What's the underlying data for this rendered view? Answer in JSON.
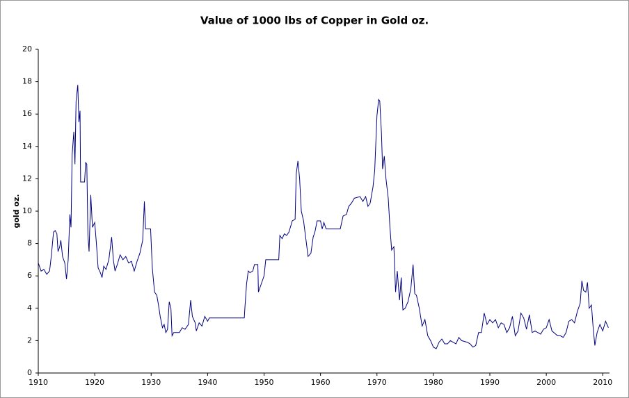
{
  "chart_data": {
    "type": "line",
    "title": "Value of 1000 lbs of Copper in Gold oz.",
    "y_label": "gold oz.",
    "xlim": [
      1910,
      2011.2
    ],
    "ylim": [
      0,
      20
    ],
    "xticks": [
      1910,
      1920,
      1930,
      1940,
      1950,
      1960,
      1970,
      1980,
      1990,
      2000,
      2010
    ],
    "yticks": [
      0,
      2,
      4,
      6,
      8,
      10,
      12,
      14,
      16,
      18,
      20
    ],
    "color": "#000080",
    "x": [
      1910,
      1910.5,
      1911,
      1911.5,
      1912,
      1912.3,
      1912.7,
      1913,
      1913.3,
      1913.5,
      1913.8,
      1914,
      1914.3,
      1914.7,
      1915,
      1915.3,
      1915.6,
      1915.8,
      1916,
      1916.3,
      1916.5,
      1916.7,
      1917,
      1917.2,
      1917.4,
      1917.5,
      1918.2,
      1918.4,
      1918.6,
      1918.8,
      1919,
      1919.3,
      1919.6,
      1920,
      1920.3,
      1920.6,
      1921,
      1921.3,
      1921.6,
      1922,
      1922.5,
      1923,
      1923.3,
      1923.6,
      1924,
      1924.5,
      1925,
      1925.5,
      1926,
      1926.5,
      1927,
      1927.5,
      1928,
      1928.5,
      1928.8,
      1929,
      1929.9,
      1930.2,
      1930.6,
      1931,
      1931.3,
      1931.6,
      1932,
      1932.3,
      1932.6,
      1932.9,
      1933.2,
      1933.5,
      1933.7,
      1934,
      1935,
      1935.5,
      1936,
      1936.6,
      1937,
      1937.3,
      1937.8,
      1938,
      1938.5,
      1939,
      1939.5,
      1940,
      1940.3,
      1946.5,
      1946.6,
      1946.9,
      1947.2,
      1947.5,
      1948,
      1948.3,
      1948.9,
      1949,
      1949.3,
      1949.8,
      1950,
      1950.3,
      1952.6,
      1952.8,
      1953.2,
      1953.6,
      1954,
      1954.4,
      1955,
      1955.5,
      1955.7,
      1956,
      1956.3,
      1956.6,
      1957,
      1957.4,
      1957.8,
      1958.3,
      1958.7,
      1959,
      1959.4,
      1960,
      1960.3,
      1960.6,
      1961,
      1963.5,
      1964,
      1964.6,
      1965,
      1965.5,
      1966,
      1967,
      1967.5,
      1968,
      1968.4,
      1968.8,
      1969.3,
      1969.6,
      1970,
      1970.3,
      1970.5,
      1970.8,
      1971,
      1971.3,
      1971.6,
      1972,
      1972.3,
      1972.6,
      1973,
      1973.3,
      1973.6,
      1974,
      1974.3,
      1974.6,
      1975,
      1975.5,
      1976,
      1976.4,
      1976.7,
      1977,
      1977.5,
      1978,
      1978.5,
      1979,
      1979.5,
      1980,
      1980.5,
      1981,
      1981.5,
      1982,
      1982.5,
      1983,
      1984,
      1984.5,
      1985,
      1986,
      1986.5,
      1987,
      1987.5,
      1988,
      1988.5,
      1989,
      1989.5,
      1990,
      1990.5,
      1991,
      1991.5,
      1992,
      1992.5,
      1993,
      1993.5,
      1994,
      1994.5,
      1995,
      1995.5,
      1996,
      1996.5,
      1997,
      1997.5,
      1998,
      1999,
      1999.5,
      2000,
      2000.5,
      2001,
      2002,
      2002.5,
      2003,
      2003.5,
      2004,
      2004.5,
      2005,
      2005.5,
      2006,
      2006.3,
      2006.6,
      2007,
      2007.3,
      2007.6,
      2008,
      2008.3,
      2008.6,
      2009,
      2009.5,
      2010,
      2010.5,
      2011
    ],
    "values": [
      6.8,
      6.3,
      6.4,
      6.1,
      6.3,
      7.2,
      8.7,
      8.8,
      8.6,
      7.5,
      7.8,
      8.2,
      7.2,
      6.8,
      5.8,
      7.0,
      9.8,
      9.0,
      13.5,
      14.9,
      12.9,
      16.8,
      17.8,
      15.5,
      16.2,
      11.8,
      11.8,
      13.0,
      12.9,
      8.5,
      7.5,
      11.0,
      9.0,
      9.3,
      8.0,
      6.5,
      6.2,
      5.9,
      6.6,
      6.4,
      7.0,
      8.4,
      7.0,
      6.3,
      6.7,
      7.3,
      7.0,
      7.2,
      6.8,
      6.9,
      6.3,
      6.9,
      7.4,
      8.2,
      10.6,
      8.9,
      8.9,
      6.5,
      5.0,
      4.8,
      4.2,
      3.5,
      2.8,
      3.0,
      2.5,
      2.7,
      4.4,
      4.0,
      2.3,
      2.5,
      2.5,
      2.8,
      2.7,
      3.0,
      4.5,
      3.5,
      3.1,
      2.6,
      3.1,
      2.9,
      3.5,
      3.2,
      3.4,
      3.4,
      4.0,
      5.5,
      6.3,
      6.2,
      6.3,
      6.7,
      6.7,
      5.0,
      5.3,
      5.8,
      6.0,
      7.0,
      7.0,
      8.5,
      8.3,
      8.6,
      8.5,
      8.7,
      9.4,
      9.5,
      12.3,
      13.1,
      12.0,
      10.0,
      9.4,
      8.3,
      7.2,
      7.4,
      8.4,
      8.7,
      9.4,
      9.4,
      8.9,
      9.3,
      8.9,
      8.9,
      9.7,
      9.8,
      10.3,
      10.5,
      10.8,
      10.9,
      10.6,
      10.9,
      10.3,
      10.5,
      11.5,
      12.5,
      15.9,
      16.9,
      16.8,
      14.8,
      12.6,
      13.4,
      12.0,
      10.8,
      9.0,
      7.6,
      7.8,
      5.0,
      6.3,
      4.5,
      5.9,
      3.9,
      4.0,
      4.4,
      5.2,
      6.7,
      4.9,
      4.8,
      4.0,
      2.9,
      3.3,
      2.3,
      2.0,
      1.6,
      1.5,
      1.9,
      2.1,
      1.8,
      1.8,
      2.0,
      1.8,
      2.2,
      2.0,
      1.9,
      1.8,
      1.6,
      1.7,
      2.5,
      2.5,
      3.7,
      3.0,
      3.3,
      3.1,
      3.3,
      2.8,
      3.1,
      3.0,
      2.5,
      2.8,
      3.5,
      2.3,
      2.6,
      3.7,
      3.4,
      2.7,
      3.6,
      2.5,
      2.6,
      2.4,
      2.7,
      2.8,
      3.3,
      2.6,
      2.3,
      2.3,
      2.2,
      2.5,
      3.2,
      3.3,
      3.1,
      3.8,
      4.3,
      5.7,
      5.1,
      5.0,
      5.6,
      4.0,
      4.2,
      2.8,
      1.7,
      2.5,
      3.0,
      2.6,
      3.2,
      2.8
    ]
  }
}
